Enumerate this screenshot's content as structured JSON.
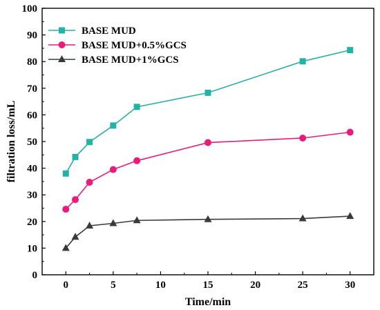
{
  "chart_data": {
    "type": "line",
    "title": "",
    "xlabel": "Time/min",
    "ylabel": "filtration loss/mL",
    "xlim": [
      -2.5,
      32.5
    ],
    "ylim": [
      0,
      100
    ],
    "xticks": [
      0,
      5,
      10,
      15,
      20,
      25,
      30
    ],
    "yticks": [
      0,
      10,
      20,
      30,
      40,
      50,
      60,
      70,
      80,
      90,
      100
    ],
    "grid": false,
    "legend_position": "top-left",
    "x": [
      0,
      1,
      2.5,
      5,
      7.5,
      15,
      25,
      30
    ],
    "series": [
      {
        "name": "BASE MUD",
        "color": "#22b2a6",
        "marker": "square",
        "values": [
          38,
          44.2,
          49.8,
          56,
          63,
          68.3,
          80.1,
          84.3
        ]
      },
      {
        "name": "BASE MUD+0.5%GCS",
        "color": "#ec1a7a",
        "marker": "circle",
        "values": [
          24.6,
          28.2,
          34.7,
          39.5,
          42.8,
          49.6,
          51.3,
          53.5
        ]
      },
      {
        "name": "BASE MUD+1%GCS",
        "color": "#3a3a3a",
        "marker": "triangle",
        "values": [
          10,
          14.2,
          18.4,
          19.3,
          20.4,
          20.8,
          21.1,
          22
        ]
      }
    ]
  }
}
